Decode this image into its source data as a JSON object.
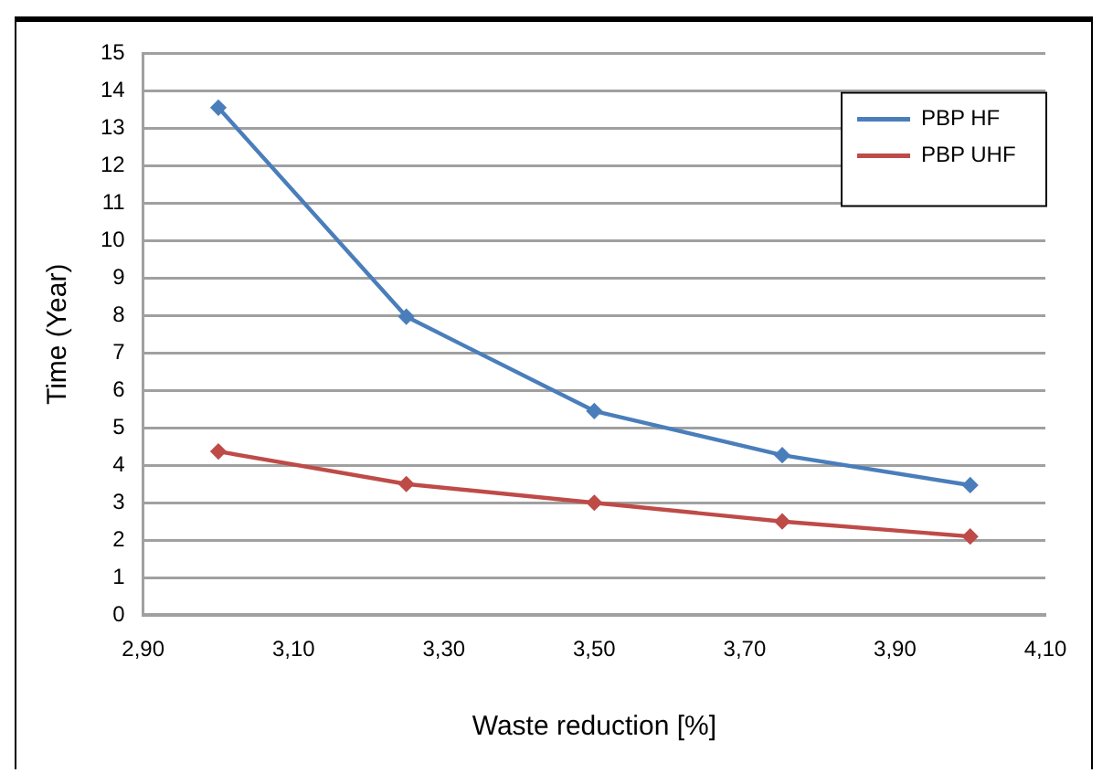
{
  "chart_data": {
    "type": "line",
    "xlabel": "Waste reduction [%]",
    "ylabel": "Time (Year)",
    "x": [
      3.0,
      3.25,
      3.5,
      3.75,
      4.0
    ],
    "series": [
      {
        "name": "PBP HF",
        "color": "#4a7ebb",
        "values": [
          13.55,
          7.97,
          5.45,
          4.27,
          3.47
        ]
      },
      {
        "name": "PBP UHF",
        "color": "#be4b48",
        "values": [
          4.37,
          3.5,
          3.0,
          2.5,
          2.1
        ]
      }
    ],
    "xlim": [
      2.9,
      4.1
    ],
    "xticks": [
      {
        "value": 2.9,
        "label": "2,90"
      },
      {
        "value": 3.1,
        "label": "3,10"
      },
      {
        "value": 3.3,
        "label": "3,30"
      },
      {
        "value": 3.5,
        "label": "3,50"
      },
      {
        "value": 3.7,
        "label": "3,70"
      },
      {
        "value": 3.9,
        "label": "3,90"
      },
      {
        "value": 4.1,
        "label": "4,10"
      }
    ],
    "ylim": [
      0,
      15
    ],
    "yticks": [
      0,
      1,
      2,
      3,
      4,
      5,
      6,
      7,
      8,
      9,
      10,
      11,
      12,
      13,
      14,
      15
    ],
    "grid": "y",
    "legend": "top right",
    "marker": "diamond",
    "line_style": "solid"
  }
}
